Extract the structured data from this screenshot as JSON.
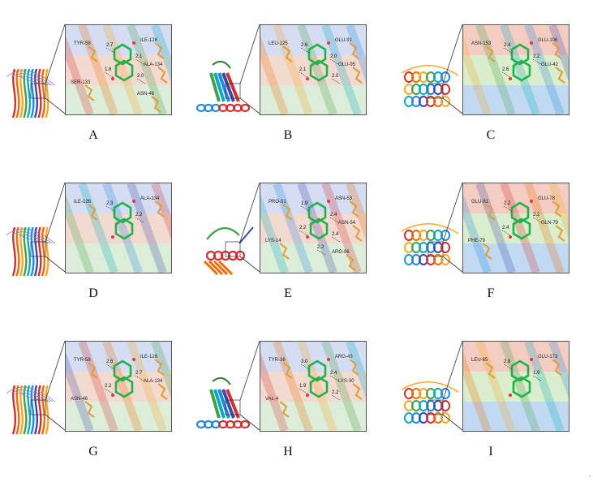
{
  "panels": [
    {
      "letter": "A",
      "style": "sheet",
      "residues": [
        "TYR-58",
        "ILE-126",
        "ALA-134",
        "SER-133",
        "ASN-46"
      ],
      "distances": [
        "2.7",
        "2.1",
        "1.8",
        "2.0"
      ]
    },
    {
      "letter": "B",
      "style": "beta",
      "residues": [
        "LEU-125",
        "GLU-91",
        "GLU-95"
      ],
      "distances": [
        "2.6",
        "2.0",
        "2.1",
        "2.0"
      ]
    },
    {
      "letter": "C",
      "style": "helix",
      "residues": [
        "ASN-153",
        "GLU-106",
        "GLU-42"
      ],
      "distances": [
        "2.4",
        "2.2",
        "2.6"
      ]
    },
    {
      "letter": "D",
      "style": "sheet",
      "residues": [
        "ILE-136",
        "ALA-134"
      ],
      "distances": [
        "2.3",
        "2.2"
      ]
    },
    {
      "letter": "E",
      "style": "mixed",
      "residues": [
        "PRO-51",
        "ASN-53",
        "ASN-54",
        "LYS-14",
        "ARG-96"
      ],
      "distances": [
        "1.9",
        "2.4",
        "2.2",
        "2.4",
        "2.2"
      ]
    },
    {
      "letter": "F",
      "style": "helix",
      "residues": [
        "GLU-81",
        "GLU-78",
        "GLN-79",
        "PHE-79"
      ],
      "distances": [
        "2.2",
        "2.2",
        "2.4"
      ]
    },
    {
      "letter": "G",
      "style": "sheet",
      "residues": [
        "TYR-58",
        "ILE-126",
        "ALA-134",
        "ASN-46"
      ],
      "distances": [
        "2.6",
        "2.7",
        "2.2"
      ]
    },
    {
      "letter": "H",
      "style": "beta",
      "residues": [
        "TYR-36",
        "ARG-43",
        "LYS-30",
        "VAL-4"
      ],
      "distances": [
        "3.0",
        "2.4",
        "1.9",
        "2.2"
      ]
    },
    {
      "letter": "I",
      "style": "helix",
      "residues": [
        "LEU-65",
        "GLU-173"
      ],
      "distances": [
        "2.8",
        "1.9"
      ]
    }
  ],
  "corner_mark": "."
}
